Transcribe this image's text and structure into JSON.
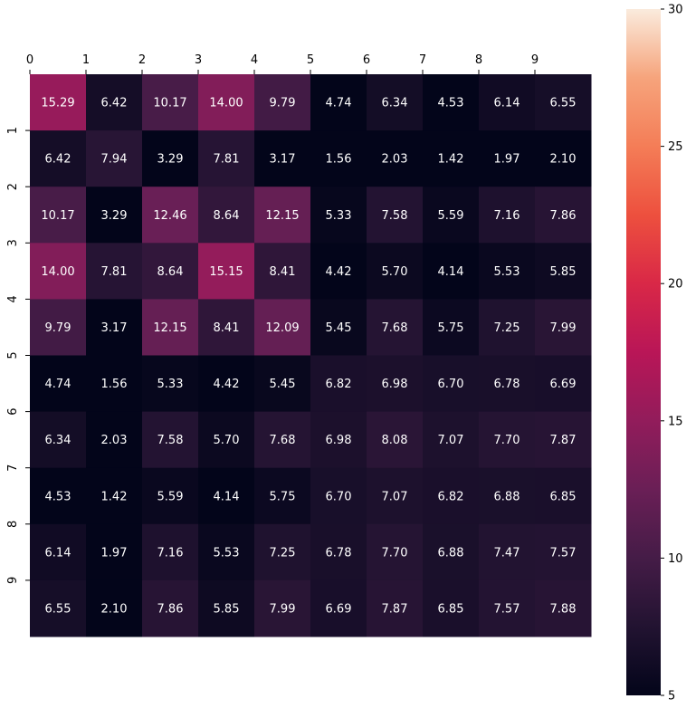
{
  "chart_data": {
    "type": "heatmap",
    "title": "",
    "xlabel": "",
    "ylabel": "",
    "colormap": "rocket",
    "color_range": [
      5,
      30
    ],
    "x_tick_labels": [
      "0",
      "1",
      "2",
      "3",
      "4",
      "5",
      "6",
      "7",
      "8",
      "9"
    ],
    "x_ticks_position": "top",
    "y_tick_labels": [
      "",
      "1",
      "2",
      "3",
      "4",
      "5",
      "6",
      "7",
      "8",
      "9"
    ],
    "colorbar_ticks": [
      "5",
      "10",
      "15",
      "20",
      "25",
      "30"
    ],
    "colorbar_tick_values": [
      5,
      10,
      15,
      20,
      25,
      30
    ],
    "annotation_color": "#ffffff",
    "values": [
      [
        15.29,
        6.42,
        10.17,
        14.0,
        9.79,
        4.74,
        6.34,
        4.53,
        6.14,
        6.55
      ],
      [
        6.42,
        7.94,
        3.29,
        7.81,
        3.17,
        1.56,
        2.03,
        1.42,
        1.97,
        2.1
      ],
      [
        10.17,
        3.29,
        12.46,
        8.64,
        12.15,
        5.33,
        7.58,
        5.59,
        7.16,
        7.86
      ],
      [
        14.0,
        7.81,
        8.64,
        15.15,
        8.41,
        4.42,
        5.7,
        4.14,
        5.53,
        5.85
      ],
      [
        9.79,
        3.17,
        12.15,
        8.41,
        12.09,
        5.45,
        7.68,
        5.75,
        7.25,
        7.99
      ],
      [
        4.74,
        1.56,
        5.33,
        4.42,
        5.45,
        6.82,
        6.98,
        6.7,
        6.78,
        6.69
      ],
      [
        6.34,
        2.03,
        7.58,
        5.7,
        7.68,
        6.98,
        8.08,
        7.07,
        7.7,
        7.87
      ],
      [
        4.53,
        1.42,
        5.59,
        4.14,
        5.75,
        6.7,
        7.07,
        6.82,
        6.88,
        6.85
      ],
      [
        6.14,
        1.97,
        7.16,
        5.53,
        7.25,
        6.78,
        7.7,
        6.88,
        7.47,
        7.57
      ],
      [
        6.55,
        2.1,
        7.86,
        5.85,
        7.99,
        6.69,
        7.87,
        6.85,
        7.57,
        7.88
      ]
    ]
  }
}
